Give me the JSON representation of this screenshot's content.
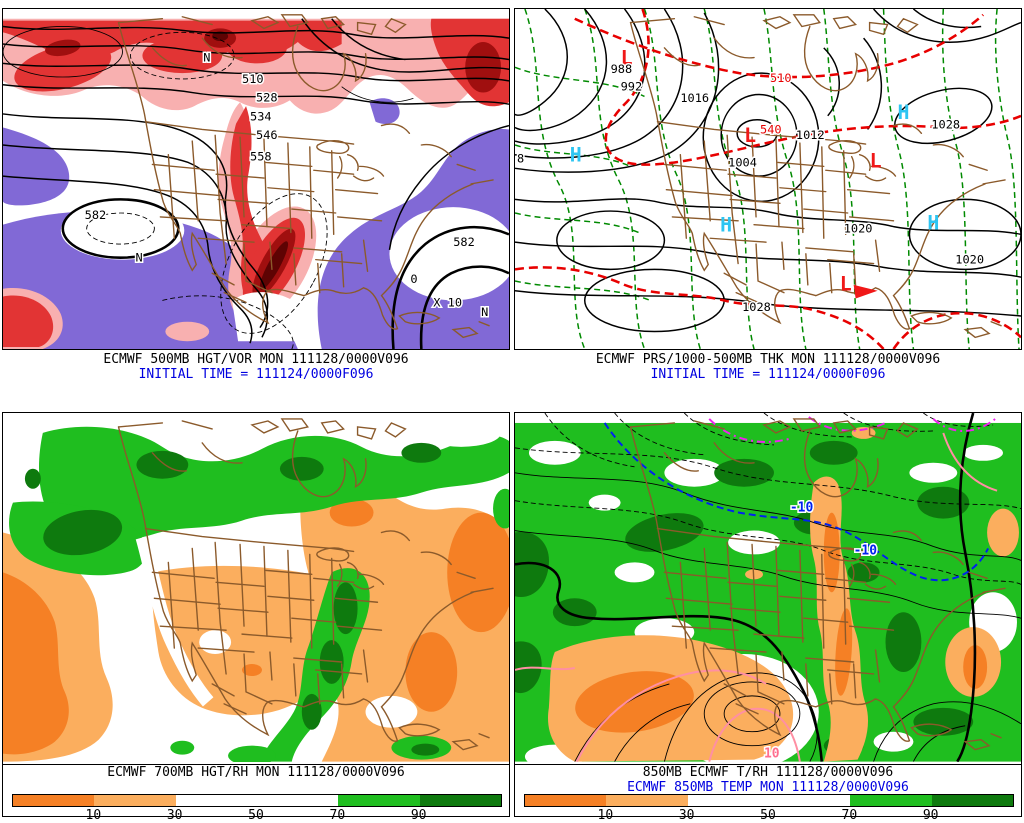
{
  "colors": {
    "vort_pink": "#F8B0B0",
    "vort_red": "#E23434",
    "vort_dark_red": "#A00F0F",
    "vort_core": "#5E0303",
    "vort_purple": "#8169D6",
    "rh_orange_dark": "#F58025",
    "rh_orange_light": "#FBAE5E",
    "rh_green": "#1FBE1F",
    "rh_green_dark": "#0E7A0E",
    "map_brown": "#8B5A2B",
    "thickness_green": "#008A00",
    "thickness_red": "#E80000",
    "high_cyan": "#2EC5F2",
    "low_red": "#F01818",
    "caption_blue": "#0000E0"
  },
  "panels": {
    "top_left": {
      "caption_line1": "ECMWF 500MB HGT/VOR MON 111128/0000V096",
      "caption_line2": "INITIAL TIME = 111124/0000F096",
      "labels": {
        "h510": "510",
        "h528": "528",
        "h534": "534",
        "h546": "546",
        "h558": "558",
        "h582_w": "582",
        "h582_e": "582",
        "x10": "X 10",
        "n_w": "N",
        "n_e": "N",
        "n_top": "N",
        "zero": "0"
      }
    },
    "top_right": {
      "caption_line1": "ECMWF PRS/1000-500MB THK MON 111128/0000V096",
      "caption_line2": "INITIAL TIME = 111124/0000F096",
      "labels": {
        "p988": "988",
        "p992": "992",
        "p1016": "1016",
        "p1004": "1004",
        "p1012": "1012",
        "p1028_ne": "1028",
        "p1020_c": "1020",
        "p1020_e": "1020",
        "p1028_s": "1028",
        "p8": "8",
        "t510": "510",
        "t540": "540",
        "high": "H",
        "low": "L"
      }
    },
    "bottom_left": {
      "caption_line1": "ECMWF 700MB HGT/RH MON 111128/0000V096"
    },
    "bottom_right": {
      "caption_line1": "850MB ECMWF T/RH 111128/0000V096",
      "caption_line2": "ECMWF 850MB TEMP MON 111128/0000V096",
      "labels": {
        "m10_w": "-10",
        "m10_e": "-10",
        "p10": "10"
      }
    }
  },
  "colorbar": {
    "tick_labels": [
      "10",
      "30",
      "50",
      "70",
      "90"
    ],
    "segment_colors": [
      "#F58025",
      "#FBAE5E",
      "#FFFFFF",
      "#FFFFFF",
      "#1FBE1F",
      "#0E7A0E"
    ]
  }
}
